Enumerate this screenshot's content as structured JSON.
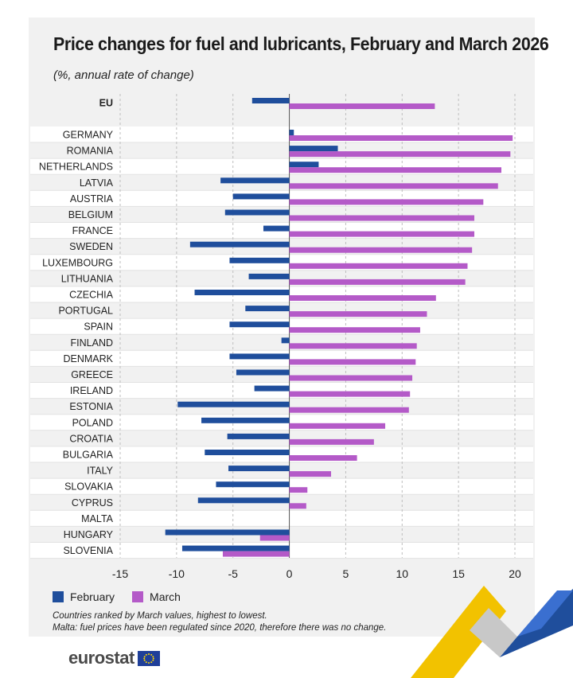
{
  "title": "Price changes for fuel and lubricants, February and March 2026",
  "subtitle": "(%, annual rate of change)",
  "legend": {
    "february": "February",
    "march": "March"
  },
  "notes": [
    "Countries ranked by March values, highest to lowest.",
    "Malta: fuel prices have been regulated since 2020, therefore there was no change."
  ],
  "logo": {
    "text": "eurostat"
  },
  "colors": {
    "february": "#1f4e9c",
    "march": "#b45ac8",
    "panel": "#f1f1f1",
    "row_alt": "#ffffff"
  },
  "chart_data": {
    "type": "bar",
    "orientation": "horizontal",
    "categories": [
      "EU",
      "GERMANY",
      "ROMANIA",
      "NETHERLANDS",
      "LATVIA",
      "AUSTRIA",
      "BELGIUM",
      "FRANCE",
      "SWEDEN",
      "LUXEMBOURG",
      "LITHUANIA",
      "CZECHIA",
      "PORTUGAL",
      "SPAIN",
      "FINLAND",
      "DENMARK",
      "GREECE",
      "IRELAND",
      "ESTONIA",
      "POLAND",
      "CROATIA",
      "BULGARIA",
      "ITALY",
      "SLOVAKIA",
      "CYPRUS",
      "MALTA",
      "HUNGARY",
      "SLOVENIA"
    ],
    "series": [
      {
        "name": "February",
        "values": [
          -3.3,
          0.4,
          4.3,
          2.6,
          -6.1,
          -5.0,
          -5.7,
          -2.3,
          -8.8,
          -5.3,
          -3.6,
          -8.4,
          -3.9,
          -5.3,
          -0.7,
          -5.3,
          -4.7,
          -3.1,
          -9.9,
          -7.8,
          -5.5,
          -7.5,
          -5.4,
          -6.5,
          -8.1,
          0.0,
          -11.0,
          -9.5
        ]
      },
      {
        "name": "March",
        "values": [
          12.9,
          19.8,
          19.6,
          18.8,
          18.5,
          17.2,
          16.4,
          16.4,
          16.2,
          15.8,
          15.6,
          13.0,
          12.2,
          11.6,
          11.3,
          11.2,
          10.9,
          10.7,
          10.6,
          8.5,
          7.5,
          6.0,
          3.7,
          1.6,
          1.5,
          0.0,
          -2.6,
          -5.9
        ]
      }
    ],
    "xlim": [
      -15,
      20
    ],
    "xticks": [
      "-15",
      "-10",
      "-5",
      "0",
      "5",
      "10",
      "15",
      "20"
    ],
    "grid": true,
    "legend_position": "bottom-left"
  }
}
